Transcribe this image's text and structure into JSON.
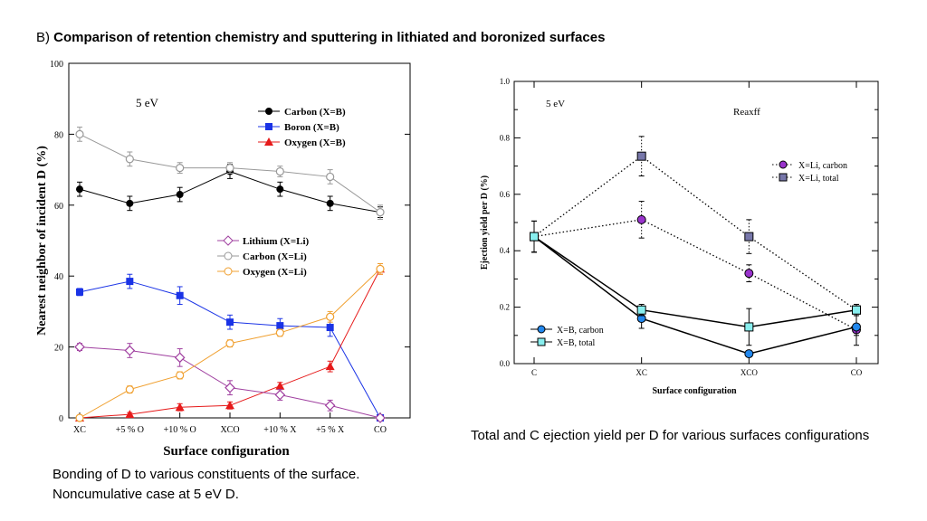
{
  "page": {
    "title_prefix": "B)",
    "title": "Comparison of retention chemistry and sputtering in lithiated and boronized surfaces",
    "caption_left_line1": "Bonding of D to various constituents of the surface.",
    "caption_left_line2": "Noncumulative case at 5 eV D.",
    "caption_right": "Total and C ejection yield per D for various surfaces configurations"
  },
  "chart_data": [
    {
      "type": "line",
      "annotation": "5 eV",
      "xlabel": "Surface configuration",
      "ylabel": "Nearest neighbor of incident D (%)",
      "categories": [
        "XC",
        "+5 % O",
        "+10 % O",
        "XCO",
        "+10 % X",
        "+5 % X",
        "CO"
      ],
      "ylim": [
        0,
        100
      ],
      "yticks": [
        "0",
        "20",
        "40",
        "60",
        "80",
        "100"
      ],
      "legend_b": "top-right",
      "legend_li": "middle-right",
      "series": [
        {
          "name": "Carbon (X=B)",
          "marker": "circle-filled",
          "color": "#000000",
          "values": [
            64.5,
            60.5,
            63,
            69.5,
            64.5,
            60.5,
            58
          ],
          "errors": [
            2,
            2,
            2,
            2,
            2,
            2,
            1.5
          ]
        },
        {
          "name": "Boron (X=B)",
          "marker": "square-filled",
          "color": "#1a33e6",
          "values": [
            35.5,
            38.5,
            34.5,
            27,
            26,
            25.5,
            0
          ],
          "errors": [
            1,
            2,
            2.5,
            2,
            2,
            2.5,
            0.5
          ]
        },
        {
          "name": "Oxygen (X=B)",
          "marker": "triangle-filled",
          "color": "#e61a1a",
          "values": [
            0,
            1,
            3,
            3.5,
            9,
            14.5,
            42
          ],
          "errors": [
            0.3,
            0.5,
            1,
            1,
            1,
            1.5,
            1.5
          ]
        },
        {
          "name": "Lithium (X=Li)",
          "marker": "diamond-open",
          "color": "#a040a0",
          "values": [
            20,
            19,
            17,
            8.5,
            6.5,
            3.5,
            0
          ],
          "errors": [
            1,
            2,
            2.5,
            2,
            1.5,
            1.5,
            0.3
          ]
        },
        {
          "name": "Carbon (X=Li)",
          "marker": "circle-open",
          "color": "#999999",
          "values": [
            80,
            73,
            70.5,
            70.5,
            69.5,
            68,
            58
          ],
          "errors": [
            2,
            2,
            1.5,
            1.5,
            1.5,
            2,
            2
          ]
        },
        {
          "name": "Oxygen (X=Li)",
          "marker": "circle-open",
          "color": "#f0a030",
          "values": [
            0,
            8,
            12,
            21,
            24,
            28.5,
            42
          ],
          "errors": [
            0.3,
            1,
            1,
            1,
            1,
            1.5,
            1.5
          ]
        }
      ]
    },
    {
      "type": "line",
      "annotation": "5 eV",
      "annotation2": "Reaxff",
      "xlabel": "Surface configuration",
      "ylabel": "Ejection yield per D (%)",
      "categories": [
        "C",
        "XC",
        "XCO",
        "CO"
      ],
      "ylim": [
        0,
        1
      ],
      "yticks": [
        "0.0",
        "0.2",
        "0.4",
        "0.6",
        "0.8",
        "1.0"
      ],
      "legend_li": "upper-right",
      "legend_b": "lower-left",
      "series": [
        {
          "name": "X=Li, carbon",
          "marker": "circle",
          "color": "#9933cc",
          "dashed": true,
          "values": [
            0.45,
            0.51,
            0.32,
            0.12
          ],
          "errors": [
            0.055,
            0.065,
            0.03,
            0.02
          ]
        },
        {
          "name": "X=Li, total",
          "marker": "square",
          "color": "#7777aa",
          "dashed": true,
          "values": [
            0.45,
            0.735,
            0.45,
            0.19
          ],
          "errors": [
            0.055,
            0.07,
            0.06,
            0.02
          ]
        },
        {
          "name": "X=B, carbon",
          "marker": "circle",
          "color": "#2288ee",
          "dashed": false,
          "values": [
            0.45,
            0.16,
            0.035,
            0.13
          ],
          "errors": [
            0.055,
            0.035,
            0.01,
            0.065
          ]
        },
        {
          "name": "X=B, total",
          "marker": "square",
          "color": "#88eeee",
          "dashed": false,
          "values": [
            0.45,
            0.19,
            0.13,
            0.19
          ],
          "errors": [
            0.055,
            0.02,
            0.065,
            0.02
          ]
        }
      ]
    }
  ]
}
